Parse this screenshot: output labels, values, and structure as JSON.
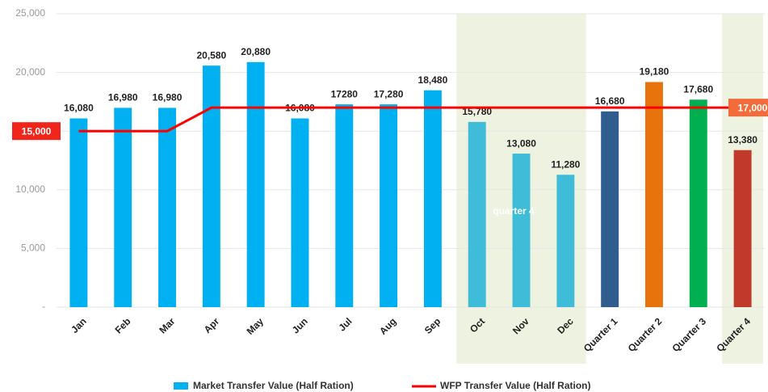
{
  "chart_data": {
    "type": "bar",
    "categories": [
      "Jan",
      "Feb",
      "Mar",
      "Apr",
      "May",
      "Jun",
      "Jul",
      "Aug",
      "Sep",
      "Oct",
      "Nov",
      "Dec",
      "Quarter 1",
      "Quarter 2",
      "Quarter 3",
      "Quarter 4"
    ],
    "series": [
      {
        "name": "Market Transfer Value (Half Ration)",
        "type": "bar",
        "color": "#00b0f0",
        "colors": [
          "#00b0f0",
          "#00b0f0",
          "#00b0f0",
          "#00b0f0",
          "#00b0f0",
          "#00b0f0",
          "#00b0f0",
          "#00b0f0",
          "#00b0f0",
          "#3fbcd8",
          "#3fbcd8",
          "#3fbcd8",
          "#2f5d8e",
          "#e8730c",
          "#00b050",
          "#c0392b"
        ],
        "values": [
          16080,
          16980,
          16980,
          20580,
          20880,
          16080,
          17280,
          17280,
          18480,
          15780,
          13080,
          11280,
          16680,
          19180,
          17680,
          13380
        ],
        "value_labels": [
          "16,080",
          "16,980",
          "16,980",
          "20,580",
          "20,880",
          "16,080",
          "17280",
          "17,280",
          "18,480",
          "15,780",
          "13,080",
          "11,280",
          "16,680",
          "19,180",
          "17,680",
          "13,380"
        ]
      },
      {
        "name": "WFP Transfer Value (Half Ration)",
        "type": "line",
        "color": "#ff0000",
        "values": [
          15000,
          15000,
          15000,
          17000,
          17000,
          17000,
          17000,
          17000,
          17000,
          17000,
          17000,
          17000,
          17000,
          17000,
          17000,
          17000
        ],
        "value_labels": [
          "15,000",
          null,
          null,
          null,
          null,
          null,
          null,
          null,
          null,
          null,
          null,
          null,
          null,
          null,
          null,
          "17,000"
        ]
      }
    ],
    "annotations": [
      "quarter 4"
    ],
    "ylim": [
      0,
      25000
    ],
    "yticks": [
      {
        "value": 0,
        "label": "-"
      },
      {
        "value": 5000,
        "label": "5,000"
      },
      {
        "value": 10000,
        "label": "10,000"
      },
      {
        "value": 15000,
        "label": "15,000"
      },
      {
        "value": 20000,
        "label": "20,000"
      },
      {
        "value": 25000,
        "label": "25,000"
      }
    ],
    "grid": true,
    "legend": "bottom"
  }
}
